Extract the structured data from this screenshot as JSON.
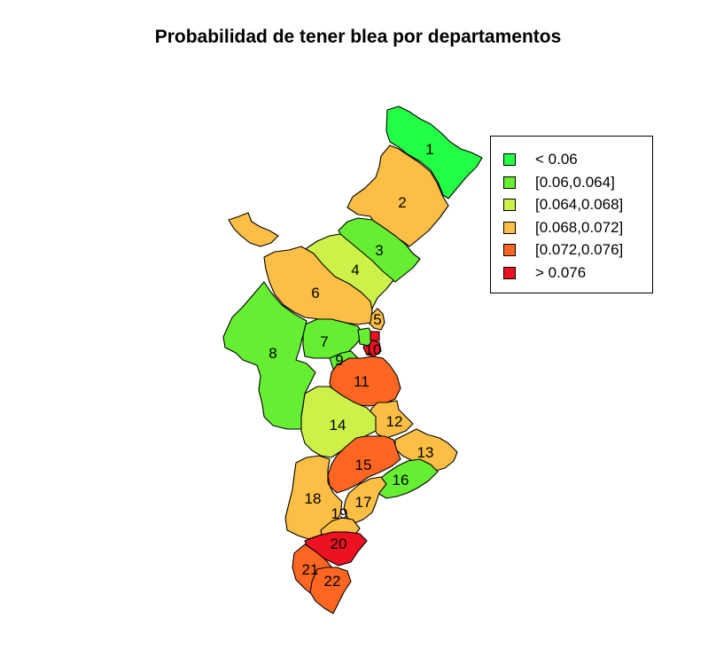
{
  "title": "Probabilidad de tener blea por departamentos",
  "legend": [
    {
      "label": "< 0.06",
      "color": "#22ff44"
    },
    {
      "label": "[0.06,0.064]",
      "color": "#66ee33"
    },
    {
      "label": "[0.064,0.068]",
      "color": "#ccf24a"
    },
    {
      "label": "[0.068,0.072]",
      "color": "#fcbe44"
    },
    {
      "label": "[0.072,0.076]",
      "color": "#ff6622"
    },
    {
      "label": "> 0.076",
      "color": "#ee1122"
    }
  ],
  "departments": [
    {
      "id": "1",
      "class": 0
    },
    {
      "id": "2",
      "class": 3
    },
    {
      "id": "3",
      "class": 1
    },
    {
      "id": "4",
      "class": 2
    },
    {
      "id": "5",
      "class": 3
    },
    {
      "id": "6",
      "class": 3
    },
    {
      "id": "7",
      "class": 1
    },
    {
      "id": "8",
      "class": 1
    },
    {
      "id": "9",
      "class": 1
    },
    {
      "id": "10",
      "class": 5
    },
    {
      "id": "11",
      "class": 4
    },
    {
      "id": "12",
      "class": 3
    },
    {
      "id": "13",
      "class": 3
    },
    {
      "id": "14",
      "class": 2
    },
    {
      "id": "15",
      "class": 4
    },
    {
      "id": "16",
      "class": 1
    },
    {
      "id": "17",
      "class": 3
    },
    {
      "id": "18",
      "class": 3
    },
    {
      "id": "19",
      "class": 3
    },
    {
      "id": "20",
      "class": 5
    },
    {
      "id": "21",
      "class": 4
    },
    {
      "id": "22",
      "class": 4
    }
  ]
}
